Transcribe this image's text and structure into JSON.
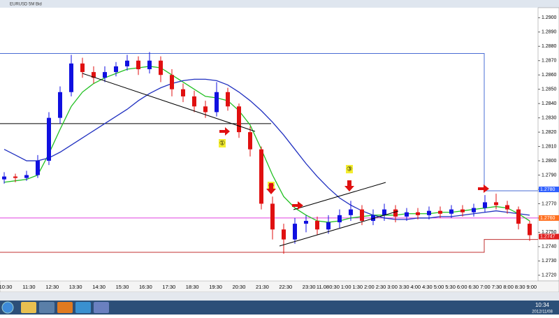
{
  "window": {
    "title": "EURUSD 5M Bid"
  },
  "taskbar": {
    "time": "10:34",
    "date": "2012/11/08"
  },
  "chart_data": {
    "type": "candlestick",
    "open": [
      1.2787,
      1.2789,
      1.2788,
      1.279,
      1.28,
      1.283,
      1.2848,
      1.2868,
      1.2862,
      1.2858,
      1.2862,
      1.2866,
      1.287,
      1.2864,
      1.287,
      1.286,
      1.285,
      1.2845,
      1.2838,
      1.2834,
      1.2848,
      1.2838,
      1.282,
      1.2808,
      1.277,
      1.2752,
      1.2745,
      1.2756,
      1.2758,
      1.2752,
      1.2757,
      1.2762,
      1.2766,
      1.2758,
      1.2762,
      1.2766,
      1.2761,
      1.2764,
      1.2762,
      1.2765,
      1.2763,
      1.2766,
      1.2764,
      1.2767,
      1.2771,
      1.2769,
      1.2766,
      1.2756
    ],
    "high": [
      1.2792,
      1.2791,
      1.2793,
      1.2804,
      1.2834,
      1.2852,
      1.2874,
      1.2872,
      1.2866,
      1.2866,
      1.2869,
      1.2874,
      1.2873,
      1.2876,
      1.2873,
      1.2864,
      1.2854,
      1.2849,
      1.2842,
      1.2855,
      1.2851,
      1.284,
      1.2824,
      1.281,
      1.2775,
      1.2756,
      1.276,
      1.2762,
      1.2761,
      1.2762,
      1.2766,
      1.2772,
      1.2769,
      1.2766,
      1.277,
      1.2769,
      1.2767,
      1.2767,
      1.2768,
      1.2768,
      1.2769,
      1.2769,
      1.277,
      1.2776,
      1.2777,
      1.2772,
      1.2768,
      1.2758
    ],
    "low": [
      1.2784,
      1.2785,
      1.2786,
      1.2788,
      1.2797,
      1.2826,
      1.2845,
      1.2858,
      1.2854,
      1.2855,
      1.2859,
      1.2863,
      1.286,
      1.2861,
      1.2855,
      1.2845,
      1.2841,
      1.2834,
      1.283,
      1.2831,
      1.2835,
      1.2816,
      1.2803,
      1.2766,
      1.2745,
      1.2735,
      1.2742,
      1.275,
      1.2748,
      1.2749,
      1.2753,
      1.2758,
      1.2755,
      1.2755,
      1.2758,
      1.2757,
      1.2758,
      1.2759,
      1.2759,
      1.276,
      1.276,
      1.2761,
      1.2761,
      1.2764,
      1.2766,
      1.2763,
      1.2752,
      1.2744
    ],
    "close": [
      1.2789,
      1.2788,
      1.279,
      1.28,
      1.283,
      1.2848,
      1.2868,
      1.2862,
      1.2858,
      1.2862,
      1.2866,
      1.287,
      1.2864,
      1.287,
      1.286,
      1.285,
      1.2845,
      1.2838,
      1.2834,
      1.2848,
      1.2838,
      1.282,
      1.2808,
      1.277,
      1.2752,
      1.2745,
      1.2756,
      1.2758,
      1.2752,
      1.2757,
      1.2762,
      1.2766,
      1.2758,
      1.2762,
      1.2766,
      1.2761,
      1.2764,
      1.2762,
      1.2765,
      1.2763,
      1.2766,
      1.2764,
      1.2767,
      1.2771,
      1.2769,
      1.2766,
      1.2756,
      1.2748
    ],
    "up_color": "#1010e0",
    "down_color": "#e01010",
    "series": [
      {
        "color": "#22c022",
        "values": [
          1.2785,
          1.2786,
          1.2787,
          1.279,
          1.2805,
          1.2822,
          1.2838,
          1.2848,
          1.2854,
          1.2858,
          1.2861,
          1.2864,
          1.2865,
          1.2866,
          1.2865,
          1.286,
          1.2855,
          1.285,
          1.2845,
          1.2844,
          1.2842,
          1.2835,
          1.2825,
          1.2808,
          1.279,
          1.2775,
          1.2767,
          1.2762,
          1.2758,
          1.2757,
          1.2758,
          1.276,
          1.2761,
          1.2762,
          1.2762,
          1.2762,
          1.2763,
          1.2763,
          1.2763,
          1.2764,
          1.2764,
          1.2765,
          1.2766,
          1.2767,
          1.2768,
          1.2767,
          1.2763,
          1.2758
        ]
      },
      {
        "color": "#2030c0",
        "values": [
          1.2808,
          1.2804,
          1.28,
          1.28,
          1.2802,
          1.2806,
          1.2811,
          1.2816,
          1.2821,
          1.2826,
          1.2831,
          1.2836,
          1.2842,
          1.2847,
          1.2851,
          1.2854,
          1.2856,
          1.2857,
          1.2857,
          1.2856,
          1.2853,
          1.2848,
          1.2842,
          1.2835,
          1.2827,
          1.2818,
          1.2808,
          1.2798,
          1.2789,
          1.2781,
          1.2774,
          1.2769,
          1.2765,
          1.2762,
          1.276,
          1.2759,
          1.2759,
          1.276,
          1.276,
          1.2761,
          1.2761,
          1.2762,
          1.2763,
          1.2764,
          1.2765,
          1.2764,
          1.2763,
          1.2762
        ]
      }
    ],
    "levels": [
      {
        "value": 1.2826,
        "color": "#000000"
      },
      {
        "value": 1.276,
        "color": "#e040e0"
      }
    ],
    "step_lines": [
      {
        "values": [
          1.2875,
          1.2779
        ],
        "color": "#4a6cd4"
      },
      {
        "values": [
          1.2736,
          1.2745
        ],
        "color": "#c03030"
      }
    ],
    "price_markers": [
      {
        "value": 1.278,
        "label": "1.2780",
        "color": "#3060ff"
      },
      {
        "value": 1.276,
        "label": "1.2760",
        "color": "#ff7020"
      },
      {
        "value": 1.2747,
        "label": "1.2747",
        "color": "#e02020"
      }
    ],
    "annotations": [
      "①",
      "②",
      "③"
    ],
    "ylim": [
      1.2716,
      1.2907
    ],
    "yticks": [
      {
        "value": 1.272,
        "label": "1.2720"
      },
      {
        "value": 1.273,
        "label": "1.2730"
      },
      {
        "value": 1.274,
        "label": "1.2740"
      },
      {
        "value": 1.275,
        "label": "1.2750"
      },
      {
        "value": 1.276,
        "label": "1.2760"
      },
      {
        "value": 1.277,
        "label": "1.2770"
      },
      {
        "value": 1.278,
        "label": "1.2780"
      },
      {
        "value": 1.279,
        "label": "1.2790"
      },
      {
        "value": 1.28,
        "label": "1.2800"
      },
      {
        "value": 1.281,
        "label": "1.2810"
      },
      {
        "value": 1.282,
        "label": "1.2820"
      },
      {
        "value": 1.283,
        "label": "1.2830"
      },
      {
        "value": 1.284,
        "label": "1.2840"
      },
      {
        "value": 1.285,
        "label": "1.2850"
      },
      {
        "value": 1.286,
        "label": "1.2860"
      },
      {
        "value": 1.287,
        "label": "1.2870"
      },
      {
        "value": 1.288,
        "label": "1.2880"
      },
      {
        "value": 1.289,
        "label": "1.2890"
      },
      {
        "value": 1.29,
        "label": "1.2900"
      }
    ],
    "time_labels": [
      "10:30",
      "11:30",
      "12:30",
      "13:30",
      "14:30",
      "15:30",
      "16:30",
      "17:30",
      "18:30",
      "19:30",
      "20:30",
      "21:30",
      "22:30",
      "23:30",
      "11.08",
      "0:30",
      "1:00",
      "1:30",
      "2:00",
      "2:30",
      "3:00",
      "3:30",
      "4:00",
      "4:30",
      "5:00",
      "5:30",
      "6:00",
      "6:30",
      "7:00",
      "7:30",
      "8:00",
      "8:30",
      "9:00"
    ]
  }
}
